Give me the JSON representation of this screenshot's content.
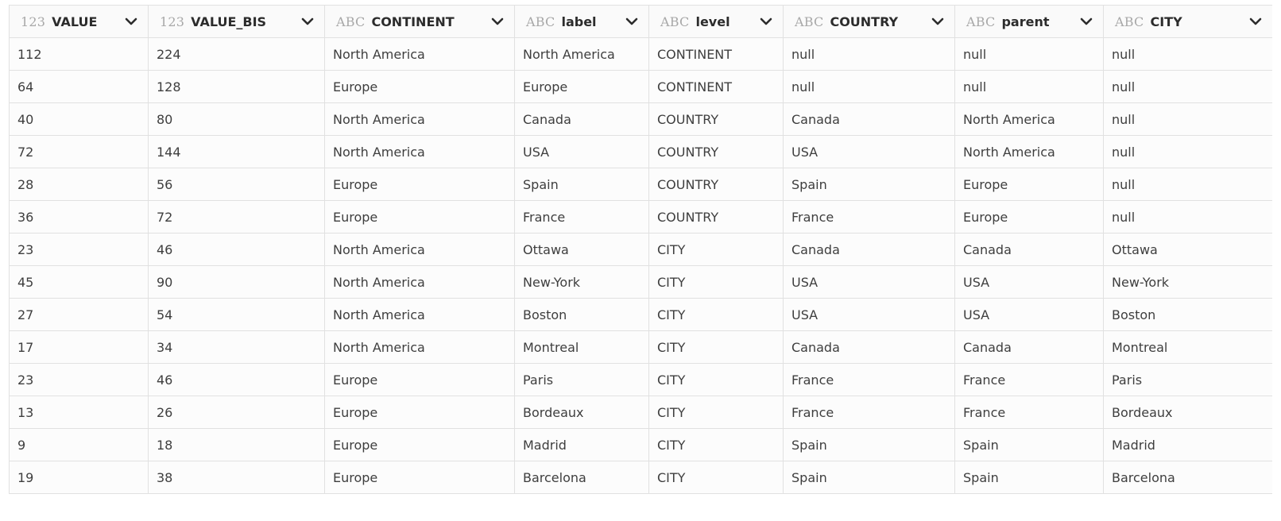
{
  "columns": [
    {
      "type": "123",
      "name": "VALUE"
    },
    {
      "type": "123",
      "name": "VALUE_BIS"
    },
    {
      "type": "ABC",
      "name": "CONTINENT"
    },
    {
      "type": "ABC",
      "name": "label"
    },
    {
      "type": "ABC",
      "name": "level"
    },
    {
      "type": "ABC",
      "name": "COUNTRY"
    },
    {
      "type": "ABC",
      "name": "parent"
    },
    {
      "type": "ABC",
      "name": "CITY"
    }
  ],
  "rows": [
    [
      "112",
      "224",
      "North America",
      "North America",
      "CONTINENT",
      "null",
      "null",
      "null"
    ],
    [
      "64",
      "128",
      "Europe",
      "Europe",
      "CONTINENT",
      "null",
      "null",
      "null"
    ],
    [
      "40",
      "80",
      "North America",
      "Canada",
      "COUNTRY",
      "Canada",
      "North America",
      "null"
    ],
    [
      "72",
      "144",
      "North America",
      "USA",
      "COUNTRY",
      "USA",
      "North America",
      "null"
    ],
    [
      "28",
      "56",
      "Europe",
      "Spain",
      "COUNTRY",
      "Spain",
      "Europe",
      "null"
    ],
    [
      "36",
      "72",
      "Europe",
      "France",
      "COUNTRY",
      "France",
      "Europe",
      "null"
    ],
    [
      "23",
      "46",
      "North America",
      "Ottawa",
      "CITY",
      "Canada",
      "Canada",
      "Ottawa"
    ],
    [
      "45",
      "90",
      "North America",
      "New-York",
      "CITY",
      "USA",
      "USA",
      "New-York"
    ],
    [
      "27",
      "54",
      "North America",
      "Boston",
      "CITY",
      "USA",
      "USA",
      "Boston"
    ],
    [
      "17",
      "34",
      "North America",
      "Montreal",
      "CITY",
      "Canada",
      "Canada",
      "Montreal"
    ],
    [
      "23",
      "46",
      "Europe",
      "Paris",
      "CITY",
      "France",
      "France",
      "Paris"
    ],
    [
      "13",
      "26",
      "Europe",
      "Bordeaux",
      "CITY",
      "France",
      "France",
      "Bordeaux"
    ],
    [
      "9",
      "18",
      "Europe",
      "Madrid",
      "CITY",
      "Spain",
      "Spain",
      "Madrid"
    ],
    [
      "19",
      "38",
      "Europe",
      "Barcelona",
      "CITY",
      "Spain",
      "Spain",
      "Barcelona"
    ]
  ],
  "icons": {
    "column_menu": "chevron-down-icon"
  }
}
